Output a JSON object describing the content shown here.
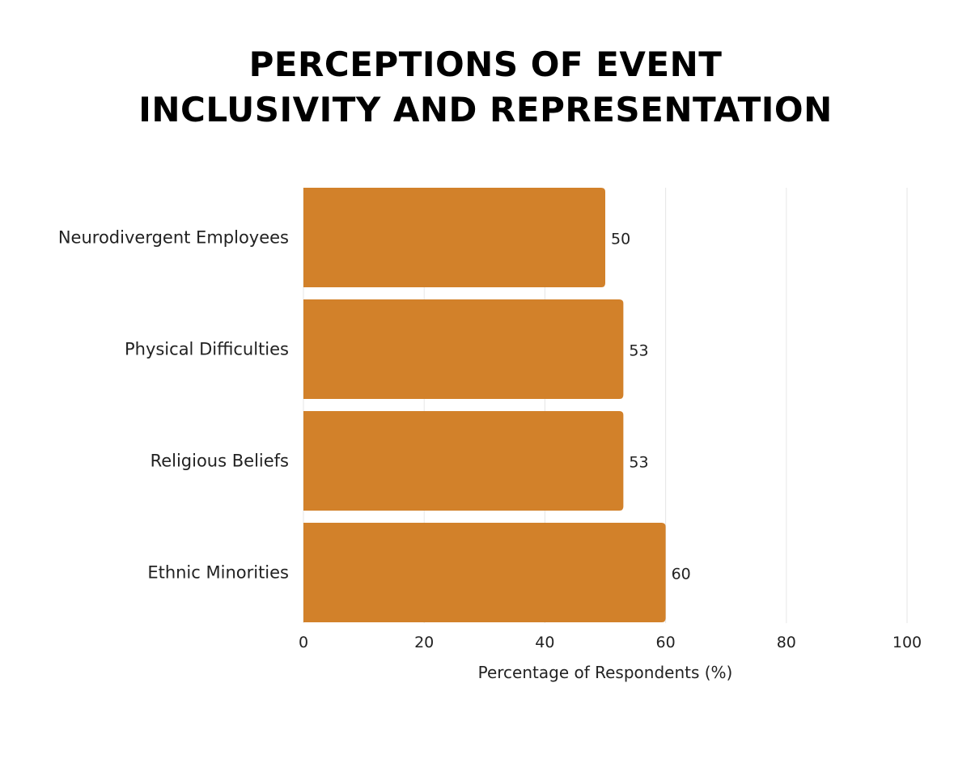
{
  "chart_data": {
    "type": "bar",
    "orientation": "horizontal",
    "title_lines": [
      "PERCEPTIONS OF EVENT",
      "INCLUSIVITY AND REPRESENTATION"
    ],
    "categories": [
      "Neurodivergent Employees",
      "Physical Difficulties",
      "Religious Beliefs",
      "Ethnic Minorities"
    ],
    "values": [
      50,
      53,
      53,
      60
    ],
    "data_labels": [
      "50",
      "53",
      "53",
      "60"
    ],
    "xlabel": "Percentage of Respondents (%)",
    "ylabel": "",
    "xlim": [
      0,
      100
    ],
    "xticks": [
      0,
      20,
      40,
      60,
      80,
      100
    ],
    "grid": "vertical",
    "bar_color": "#D2812A",
    "grid_color": "#E6E6E6"
  }
}
